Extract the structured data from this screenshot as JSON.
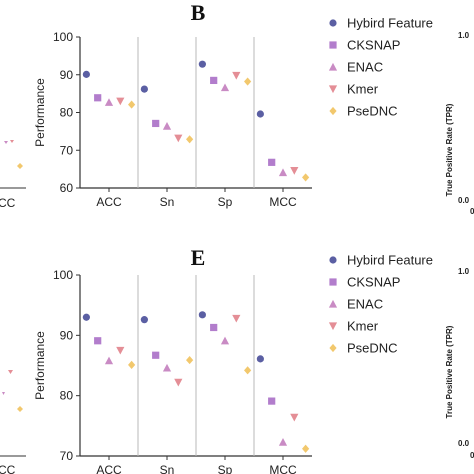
{
  "colors": {
    "Hybird Feature": "#5b5fa3",
    "CKSNAP": "#b27dcc",
    "ENAC": "#c98bc4",
    "Kmer": "#e48e96",
    "PseDNC": "#f2c86d"
  },
  "markers": {
    "Hybird Feature": "circle",
    "CKSNAP": "square",
    "ENAC": "triangle-up",
    "Kmer": "triangle-down",
    "PseDNC": "diamond"
  },
  "left_fragments": {
    "top_tick": "CC",
    "bottom_tick": "CC"
  },
  "right_fragments": {
    "top": {
      "ylabel": "True Positive Rate (TPR)",
      "tick_top": "1.0",
      "tick_bottom": "0.0",
      "tick_x": "0"
    },
    "bottom": {
      "ylabel": "True Positive Rate (TPR)",
      "tick_top": "1.0",
      "tick_bottom": "0.0",
      "tick_x": "0"
    }
  },
  "chart_data": [
    {
      "type": "scatter",
      "panel": "B",
      "ylabel": "Performance",
      "ylim": [
        60,
        100
      ],
      "yticks": [
        60,
        70,
        80,
        90,
        100
      ],
      "categories": [
        "ACC",
        "Sn",
        "Sp",
        "MCC"
      ],
      "legend_position": "top-right",
      "series": [
        {
          "name": "Hybird Feature",
          "values": [
            90.1,
            86.2,
            92.8,
            79.6
          ]
        },
        {
          "name": "CKSNAP",
          "values": [
            83.9,
            77.1,
            88.5,
            66.8
          ]
        },
        {
          "name": "ENAC",
          "values": [
            82.7,
            76.4,
            86.6,
            64.1
          ]
        },
        {
          "name": "Kmer",
          "values": [
            83.0,
            73.2,
            89.8,
            64.6
          ]
        },
        {
          "name": "PseDNC",
          "values": [
            82.1,
            72.9,
            88.2,
            62.8
          ]
        }
      ]
    },
    {
      "type": "scatter",
      "panel": "E",
      "ylabel": "Performance",
      "ylim": [
        70,
        100
      ],
      "yticks": [
        70,
        80,
        90,
        100
      ],
      "categories": [
        "ACC",
        "Sn",
        "Sp",
        "MCC"
      ],
      "legend_position": "top-right",
      "series": [
        {
          "name": "Hybird Feature",
          "values": [
            93.0,
            92.6,
            93.4,
            86.1
          ]
        },
        {
          "name": "CKSNAP",
          "values": [
            89.1,
            86.7,
            91.3,
            79.1
          ]
        },
        {
          "name": "ENAC",
          "values": [
            85.8,
            84.6,
            89.1,
            72.3
          ]
        },
        {
          "name": "Kmer",
          "values": [
            87.5,
            82.2,
            92.8,
            76.4
          ]
        },
        {
          "name": "PseDNC",
          "values": [
            85.1,
            85.9,
            84.2,
            71.2
          ]
        }
      ]
    }
  ]
}
